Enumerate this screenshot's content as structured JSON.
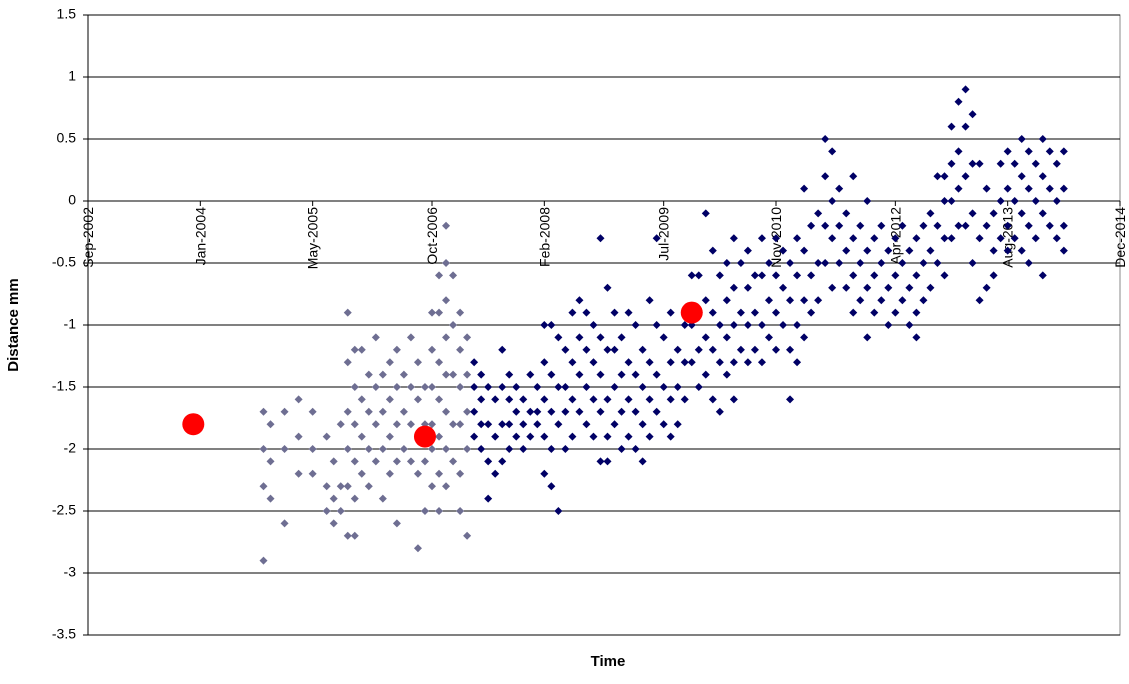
{
  "chart_data": {
    "type": "scatter",
    "x_label": "Time",
    "y_label": "Distance mm",
    "xlim": [
      "2002-09",
      "2014-12"
    ],
    "xticks": [
      {
        "value": "2002-09",
        "label": "Sep-2002"
      },
      {
        "value": "2004-01",
        "label": "Jan-2004"
      },
      {
        "value": "2005-05",
        "label": "May-2005"
      },
      {
        "value": "2006-10",
        "label": "Oct-2006"
      },
      {
        "value": "2008-02",
        "label": "Feb-2008"
      },
      {
        "value": "2009-07",
        "label": "Jul-2009"
      },
      {
        "value": "2010-11",
        "label": "Nov-2010"
      },
      {
        "value": "2012-04",
        "label": "Apr-2012"
      },
      {
        "value": "2013-08",
        "label": "Aug-2013"
      },
      {
        "value": "2014-12",
        "label": "Dec-2014"
      }
    ],
    "ylim": [
      -3.5,
      1.5
    ],
    "yticks": [
      -3.5,
      -3,
      -2.5,
      -2,
      -1.5,
      -1,
      -0.5,
      0,
      0.5,
      1,
      1.5
    ],
    "grid": true,
    "series": [
      {
        "color": "#6e6e92",
        "marker": "diamond",
        "x": [
          "2004-10",
          "2004-10",
          "2004-10",
          "2004-10",
          "2004-11",
          "2004-11",
          "2004-11",
          "2005-01",
          "2005-01",
          "2005-01",
          "2005-03",
          "2005-03",
          "2005-03",
          "2005-05",
          "2005-05",
          "2005-05",
          "2005-07",
          "2005-07",
          "2005-07",
          "2005-08",
          "2005-08",
          "2005-08",
          "2005-09",
          "2005-09",
          "2005-09",
          "2005-10",
          "2005-10",
          "2005-10",
          "2005-10",
          "2005-10",
          "2005-10",
          "2005-11",
          "2005-11",
          "2005-11",
          "2005-11",
          "2005-11",
          "2005-11",
          "2005-12",
          "2005-12",
          "2005-12",
          "2005-12",
          "2006-01",
          "2006-01",
          "2006-01",
          "2006-01",
          "2006-02",
          "2006-02",
          "2006-02",
          "2006-02",
          "2006-03",
          "2006-03",
          "2006-03",
          "2006-03",
          "2006-04",
          "2006-04",
          "2006-04",
          "2006-04",
          "2006-05",
          "2006-05",
          "2006-05",
          "2006-05",
          "2006-05",
          "2006-06",
          "2006-06",
          "2006-06",
          "2006-07",
          "2006-07",
          "2006-07",
          "2006-07",
          "2006-08",
          "2006-08",
          "2006-08",
          "2006-08",
          "2006-08",
          "2006-09",
          "2006-09",
          "2006-09",
          "2006-09",
          "2006-10",
          "2006-10",
          "2006-10",
          "2006-10",
          "2006-10",
          "2006-10",
          "2006-11",
          "2006-11",
          "2006-11",
          "2006-11",
          "2006-11",
          "2006-11",
          "2006-11",
          "2006-12",
          "2006-12",
          "2006-12",
          "2006-12",
          "2006-12",
          "2006-12",
          "2006-12",
          "2006-12",
          "2007-01",
          "2007-01",
          "2007-01",
          "2007-01",
          "2007-01",
          "2007-02",
          "2007-02",
          "2007-02",
          "2007-02",
          "2007-02",
          "2007-02",
          "2007-03",
          "2007-03",
          "2007-03",
          "2007-03",
          "2007-03"
        ],
        "values": [
          -1.7,
          -2.0,
          -2.3,
          -2.9,
          -1.8,
          -2.1,
          -2.4,
          -1.7,
          -2.0,
          -2.6,
          -1.6,
          -1.9,
          -2.2,
          -1.7,
          -2.0,
          -2.2,
          -1.9,
          -2.3,
          -2.5,
          -2.1,
          -2.4,
          -2.6,
          -1.8,
          -2.3,
          -2.5,
          -0.9,
          -1.3,
          -1.7,
          -2.0,
          -2.3,
          -2.7,
          -1.2,
          -1.5,
          -1.8,
          -2.1,
          -2.4,
          -2.7,
          -1.2,
          -1.6,
          -1.9,
          -2.2,
          -1.4,
          -1.7,
          -2.0,
          -2.3,
          -1.1,
          -1.5,
          -1.8,
          -2.1,
          -1.4,
          -1.7,
          -2.0,
          -2.4,
          -1.3,
          -1.6,
          -1.9,
          -2.2,
          -1.2,
          -1.5,
          -1.8,
          -2.1,
          -2.6,
          -1.4,
          -1.7,
          -2.0,
          -1.1,
          -1.5,
          -1.8,
          -2.1,
          -1.3,
          -1.6,
          -1.9,
          -2.2,
          -2.8,
          -1.5,
          -1.8,
          -2.1,
          -2.5,
          -0.9,
          -1.2,
          -1.5,
          -1.8,
          -2.0,
          -2.3,
          -0.6,
          -0.9,
          -1.3,
          -1.6,
          -1.9,
          -2.2,
          -2.5,
          -0.2,
          -0.5,
          -0.8,
          -1.1,
          -1.4,
          -1.7,
          -2.0,
          -2.3,
          -0.6,
          -1.0,
          -1.4,
          -1.8,
          -2.1,
          -0.9,
          -1.2,
          -1.5,
          -1.8,
          -2.2,
          -2.5,
          -1.1,
          -1.4,
          -1.7,
          -2.0,
          -2.7
        ]
      },
      {
        "color": "#000066",
        "marker": "diamond",
        "x": [
          "2007-04",
          "2007-04",
          "2007-04",
          "2007-04",
          "2007-05",
          "2007-05",
          "2007-05",
          "2007-05",
          "2007-06",
          "2007-06",
          "2007-06",
          "2007-06",
          "2007-07",
          "2007-07",
          "2007-07",
          "2007-08",
          "2007-08",
          "2007-08",
          "2007-08",
          "2007-09",
          "2007-09",
          "2007-09",
          "2007-09",
          "2007-10",
          "2007-10",
          "2007-10",
          "2007-11",
          "2007-11",
          "2007-11",
          "2007-12",
          "2007-12",
          "2007-12",
          "2008-01",
          "2008-01",
          "2008-01",
          "2008-02",
          "2008-02",
          "2008-02",
          "2008-02",
          "2008-02",
          "2008-03",
          "2008-03",
          "2008-03",
          "2008-03",
          "2008-03",
          "2008-04",
          "2008-04",
          "2008-04",
          "2008-04",
          "2008-05",
          "2008-05",
          "2008-05",
          "2008-05",
          "2008-06",
          "2008-06",
          "2008-06",
          "2008-06",
          "2008-07",
          "2008-07",
          "2008-07",
          "2008-07",
          "2008-08",
          "2008-08",
          "2008-08",
          "2008-08",
          "2008-09",
          "2008-09",
          "2008-09",
          "2008-09",
          "2008-10",
          "2008-10",
          "2008-10",
          "2008-10",
          "2008-10",
          "2008-11",
          "2008-11",
          "2008-11",
          "2008-11",
          "2008-11",
          "2008-12",
          "2008-12",
          "2008-12",
          "2008-12",
          "2009-01",
          "2009-01",
          "2009-01",
          "2009-01",
          "2009-02",
          "2009-02",
          "2009-02",
          "2009-02",
          "2009-03",
          "2009-03",
          "2009-03",
          "2009-03",
          "2009-04",
          "2009-04",
          "2009-04",
          "2009-04",
          "2009-05",
          "2009-05",
          "2009-05",
          "2009-05",
          "2009-06",
          "2009-06",
          "2009-06",
          "2009-06",
          "2009-07",
          "2009-07",
          "2009-07",
          "2009-08",
          "2009-08",
          "2009-08",
          "2009-08",
          "2009-09",
          "2009-09",
          "2009-09",
          "2009-10",
          "2009-10",
          "2009-10",
          "2009-11",
          "2009-11",
          "2009-11",
          "2009-12",
          "2009-12",
          "2009-12",
          "2009-12",
          "2010-01",
          "2010-01",
          "2010-01",
          "2010-01",
          "2010-02",
          "2010-02",
          "2010-02",
          "2010-02",
          "2010-03",
          "2010-03",
          "2010-03",
          "2010-03",
          "2010-04",
          "2010-04",
          "2010-04",
          "2010-04",
          "2010-05",
          "2010-05",
          "2010-05",
          "2010-05",
          "2010-05",
          "2010-06",
          "2010-06",
          "2010-06",
          "2010-07",
          "2010-07",
          "2010-07",
          "2010-07",
          "2010-08",
          "2010-08",
          "2010-08",
          "2010-09",
          "2010-09",
          "2010-09",
          "2010-09",
          "2010-10",
          "2010-10",
          "2010-10",
          "2010-11",
          "2010-11",
          "2010-11",
          "2010-11",
          "2010-12",
          "2010-12",
          "2010-12",
          "2011-01",
          "2011-01",
          "2011-01",
          "2011-01",
          "2011-02",
          "2011-02",
          "2011-02",
          "2011-02",
          "2011-03",
          "2011-03",
          "2011-03",
          "2011-03",
          "2011-04",
          "2011-04",
          "2011-04",
          "2011-05",
          "2011-05",
          "2011-05",
          "2011-06",
          "2011-06",
          "2011-06",
          "2011-06",
          "2011-07",
          "2011-07",
          "2011-07",
          "2011-07",
          "2011-08",
          "2011-08",
          "2011-08",
          "2011-09",
          "2011-09",
          "2011-09",
          "2011-10",
          "2011-10",
          "2011-10",
          "2011-10",
          "2011-11",
          "2011-11",
          "2011-11",
          "2011-12",
          "2011-12",
          "2011-12",
          "2011-12",
          "2012-01",
          "2012-01",
          "2012-01",
          "2012-02",
          "2012-02",
          "2012-02",
          "2012-03",
          "2012-03",
          "2012-03",
          "2012-04",
          "2012-04",
          "2012-04",
          "2012-05",
          "2012-05",
          "2012-05",
          "2012-06",
          "2012-06",
          "2012-06",
          "2012-07",
          "2012-07",
          "2012-07",
          "2012-07",
          "2012-08",
          "2012-08",
          "2012-08",
          "2012-09",
          "2012-09",
          "2012-09",
          "2012-10",
          "2012-10",
          "2012-10",
          "2012-11",
          "2012-11",
          "2012-11",
          "2012-11",
          "2012-12",
          "2012-12",
          "2012-12",
          "2012-12",
          "2013-01",
          "2013-01",
          "2013-01",
          "2013-01",
          "2013-02",
          "2013-02",
          "2013-02",
          "2013-02",
          "2013-03",
          "2013-03",
          "2013-03",
          "2013-03",
          "2013-04",
          "2013-04",
          "2013-04",
          "2013-05",
          "2013-05",
          "2013-05",
          "2013-06",
          "2013-06",
          "2013-06",
          "2013-07",
          "2013-07",
          "2013-07",
          "2013-08",
          "2013-08",
          "2013-08",
          "2013-08",
          "2013-09",
          "2013-09",
          "2013-09",
          "2013-10",
          "2013-10",
          "2013-10",
          "2013-10",
          "2013-11",
          "2013-11",
          "2013-11",
          "2013-11",
          "2013-12",
          "2013-12",
          "2013-12",
          "2014-01",
          "2014-01",
          "2014-01",
          "2014-01",
          "2014-02",
          "2014-02",
          "2014-02",
          "2014-03",
          "2014-03",
          "2014-03",
          "2014-04",
          "2014-04",
          "2014-04",
          "2014-04"
        ],
        "values": [
          -1.3,
          -1.5,
          -1.7,
          -1.9,
          -1.4,
          -1.6,
          -1.8,
          -2.0,
          -1.5,
          -1.8,
          -2.1,
          -2.4,
          -1.6,
          -1.9,
          -2.2,
          -1.2,
          -1.5,
          -1.8,
          -2.1,
          -1.4,
          -1.6,
          -1.8,
          -2.0,
          -1.5,
          -1.7,
          -1.9,
          -1.6,
          -1.8,
          -2.0,
          -1.4,
          -1.7,
          -1.9,
          -1.5,
          -1.7,
          -1.8,
          -1.0,
          -1.3,
          -1.6,
          -1.9,
          -2.2,
          -1.0,
          -1.4,
          -1.7,
          -2.0,
          -2.3,
          -1.1,
          -1.5,
          -1.8,
          -2.5,
          -1.2,
          -1.5,
          -1.7,
          -2.0,
          -0.9,
          -1.3,
          -1.6,
          -1.9,
          -0.8,
          -1.1,
          -1.4,
          -1.7,
          -0.9,
          -1.2,
          -1.5,
          -1.8,
          -1.0,
          -1.3,
          -1.6,
          -1.9,
          -0.3,
          -1.1,
          -1.4,
          -1.7,
          -2.1,
          -0.7,
          -1.2,
          -1.6,
          -1.9,
          -2.1,
          -0.9,
          -1.2,
          -1.5,
          -1.8,
          -1.1,
          -1.4,
          -1.7,
          -2.0,
          -0.9,
          -1.3,
          -1.6,
          -1.9,
          -1.0,
          -1.4,
          -1.7,
          -2.0,
          -1.2,
          -1.5,
          -1.8,
          -2.1,
          -0.8,
          -1.3,
          -1.6,
          -1.9,
          -0.3,
          -1.0,
          -1.4,
          -1.7,
          -1.1,
          -1.5,
          -1.8,
          -0.9,
          -1.3,
          -1.6,
          -1.9,
          -1.2,
          -1.5,
          -1.8,
          -1.0,
          -1.3,
          -1.6,
          -0.6,
          -1.0,
          -1.3,
          -0.6,
          -0.9,
          -1.2,
          -1.5,
          -0.1,
          -0.8,
          -1.1,
          -1.4,
          -0.4,
          -0.9,
          -1.2,
          -1.6,
          -0.6,
          -1.0,
          -1.3,
          -1.7,
          -0.5,
          -0.8,
          -1.1,
          -1.4,
          -0.3,
          -0.7,
          -1.0,
          -1.3,
          -1.6,
          -0.5,
          -0.9,
          -1.2,
          -0.4,
          -0.7,
          -1.0,
          -1.3,
          -0.6,
          -0.9,
          -1.2,
          -0.3,
          -0.6,
          -1.0,
          -1.3,
          -0.5,
          -0.8,
          -1.1,
          -0.3,
          -0.6,
          -0.9,
          -1.2,
          -0.4,
          -0.7,
          -1.0,
          -0.5,
          -0.8,
          -1.2,
          -1.6,
          -0.3,
          -0.6,
          -1.0,
          -1.3,
          0.1,
          -0.4,
          -0.8,
          -1.1,
          -0.2,
          -0.6,
          -0.9,
          -0.1,
          -0.5,
          -0.8,
          0.5,
          0.2,
          -0.2,
          -0.5,
          0.4,
          0.0,
          -0.3,
          -0.7,
          0.1,
          -0.2,
          -0.5,
          -0.1,
          -0.4,
          -0.7,
          0.2,
          -0.3,
          -0.6,
          -0.9,
          -0.2,
          -0.5,
          -0.8,
          0.0,
          -0.4,
          -0.7,
          -1.1,
          -0.3,
          -0.6,
          -0.9,
          -0.2,
          -0.5,
          -0.8,
          -0.4,
          -0.7,
          -1.0,
          -0.3,
          -0.6,
          -0.9,
          -0.2,
          -0.5,
          -0.8,
          -0.4,
          -0.7,
          -1.0,
          -0.3,
          -0.6,
          -0.9,
          -1.1,
          -0.2,
          -0.5,
          -0.8,
          -0.1,
          -0.4,
          -0.7,
          0.2,
          -0.2,
          -0.5,
          0.2,
          0.0,
          -0.3,
          -0.6,
          0.6,
          0.3,
          0.0,
          -0.3,
          0.8,
          0.4,
          0.1,
          -0.2,
          0.9,
          0.6,
          0.2,
          -0.2,
          0.7,
          0.3,
          -0.1,
          -0.5,
          0.3,
          -0.3,
          -0.8,
          0.1,
          -0.2,
          -0.7,
          -0.1,
          -0.4,
          -0.6,
          0.3,
          0.0,
          -0.3,
          0.4,
          0.1,
          -0.2,
          -0.4,
          0.3,
          0.0,
          -0.3,
          0.5,
          0.2,
          -0.1,
          -0.4,
          0.4,
          0.1,
          -0.2,
          -0.5,
          0.3,
          0.0,
          -0.3,
          0.5,
          0.2,
          -0.1,
          -0.6,
          0.4,
          0.1,
          -0.2,
          0.3,
          0.0,
          -0.3,
          0.4,
          0.1,
          -0.2,
          -0.4
        ]
      },
      {
        "color": "#ff0000",
        "marker": "circle",
        "x": [
          "2003-12",
          "2006-09",
          "2009-11"
        ],
        "values": [
          -1.8,
          -1.9,
          -0.9
        ]
      }
    ]
  }
}
